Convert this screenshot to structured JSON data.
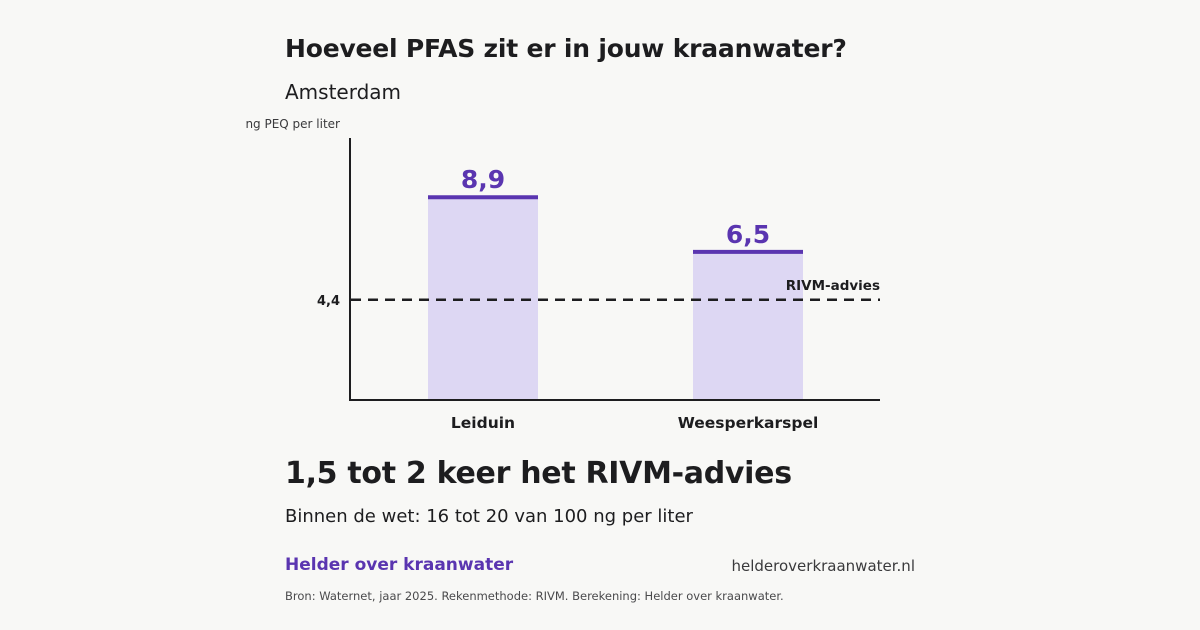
{
  "header": {
    "title": "Hoeveel PFAS zit er in jouw kraanwater?",
    "subtitle": "Amsterdam"
  },
  "chart_data": {
    "type": "bar",
    "title": "Hoeveel PFAS zit er in jouw kraanwater?",
    "subtitle": "Amsterdam",
    "ylabel": "ng PEQ per liter",
    "xlabel": "",
    "categories": [
      "Leiduin",
      "Weesperkarspel"
    ],
    "values": [
      8.9,
      6.5
    ],
    "value_labels": [
      "8,9",
      "6,5"
    ],
    "ylim": [
      0,
      11.5
    ],
    "grid": false,
    "reference_line": {
      "value": 4.4,
      "tick_label": "4,4",
      "label": "RIVM-advies",
      "style": "dashed"
    },
    "colors": {
      "bar_fill": "#ddd7f3",
      "bar_top": "#5a35b0",
      "value_label": "#5a35b0",
      "axis": "#1d1d1f",
      "reference": "#1d1d1f"
    }
  },
  "summary": {
    "headline": "1,5 tot 2 keer het RIVM-advies",
    "subline": "Binnen de wet: 16 tot 20 van 100 ng per liter"
  },
  "footer": {
    "brand": "Helder over kraanwater",
    "url": "helderoverkraanwater.nl",
    "source": "Bron: Waternet, jaar 2025. Rekenmethode: RIVM. Berekening: Helder over kraanwater.",
    "brand_color": "#5a35b0"
  }
}
